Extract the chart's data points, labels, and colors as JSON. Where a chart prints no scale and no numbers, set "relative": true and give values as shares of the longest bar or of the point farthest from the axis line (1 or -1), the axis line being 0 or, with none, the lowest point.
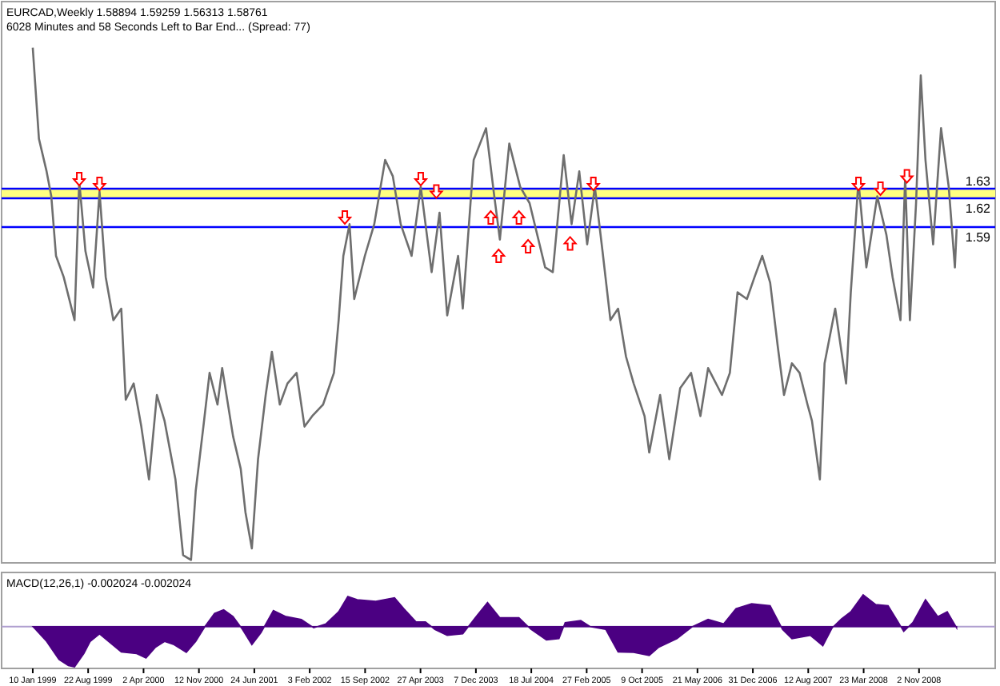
{
  "chart_data": [
    {
      "type": "line",
      "title": "EURCAD,Weekly 1.58894 1.59259 1.56313 1.58761",
      "subtitle": "6028 Minutes and 58 Seconds Left to Bar End... (Spread: 77)",
      "xlim": [
        "1998-09-06",
        "2009-09-06"
      ],
      "ylim": [
        1.24,
        1.825
      ],
      "tick_labels": false,
      "series": [
        {
          "color": "#6e6e6e",
          "marker": "none",
          "x": [
            "1999-01-10",
            "1999-02-04",
            "1999-03-07",
            "1999-03-26",
            "1999-04-14",
            "1999-05-15",
            "1999-06-28",
            "1999-07-17",
            "1999-08-11",
            "1999-09-11",
            "1999-10-07",
            "1999-11-01",
            "1999-12-02",
            "2000-01-03",
            "2000-01-21",
            "2000-02-22",
            "2000-03-24",
            "2000-04-24",
            "2000-05-26",
            "2000-06-26",
            "2000-08-09",
            "2000-09-09",
            "2000-10-11",
            "2000-10-30",
            "2000-11-30",
            "2000-12-25",
            "2001-01-26",
            "2001-02-14",
            "2001-03-30",
            "2001-04-30",
            "2001-05-19",
            "2001-06-14",
            "2001-07-09",
            "2001-08-09",
            "2001-09-03",
            "2001-10-05",
            "2001-11-05",
            "2001-12-12",
            "2002-01-13",
            "2002-02-13",
            "2002-03-29",
            "2002-05-12",
            "2002-05-31",
            "2002-06-19",
            "2002-07-14",
            "2002-08-02",
            "2002-09-14",
            "2002-10-22",
            "2002-12-05",
            "2003-01-05",
            "2003-02-06",
            "2003-03-22",
            "2003-04-28",
            "2003-06-11",
            "2003-07-13",
            "2003-08-13",
            "2003-09-26",
            "2003-10-15",
            "2003-11-28",
            "2004-01-17",
            "2004-02-17",
            "2004-03-13",
            "2004-04-20",
            "2004-06-03",
            "2004-07-11",
            "2004-09-12",
            "2004-10-13",
            "2004-11-26",
            "2004-12-28",
            "2005-01-28",
            "2005-03-01",
            "2005-04-01",
            "2005-05-02",
            "2005-06-03",
            "2005-07-04",
            "2005-08-05",
            "2005-09-05",
            "2005-10-19",
            "2005-11-07",
            "2005-12-21",
            "2006-01-27",
            "2006-03-12",
            "2006-04-25",
            "2006-06-02",
            "2006-07-03",
            "2006-08-28",
            "2006-09-29",
            "2006-10-30",
            "2006-12-07",
            "2007-01-07",
            "2007-02-07",
            "2007-03-11",
            "2007-04-11",
            "2007-05-06",
            "2007-06-07",
            "2007-07-08",
            "2007-08-09",
            "2007-08-27",
            "2007-09-28",
            "2007-10-17",
            "2007-11-29",
            "2008-01-12",
            "2008-01-31",
            "2008-03-02",
            "2008-04-03",
            "2008-05-17",
            "2008-06-23",
            "2008-07-18",
            "2008-08-19",
            "2008-09-07",
            "2008-09-26",
            "2008-10-21",
            "2008-11-09",
            "2008-11-28",
            "2008-12-29",
            "2009-01-30",
            "2009-03-02",
            "2009-03-27",
            "2009-04-03"
          ],
          "values": [
            1.777,
            1.682,
            1.648,
            1.622,
            1.56,
            1.538,
            1.493,
            1.638,
            1.565,
            1.527,
            1.627,
            1.538,
            1.493,
            1.505,
            1.41,
            1.427,
            1.382,
            1.327,
            1.415,
            1.388,
            1.327,
            1.248,
            1.243,
            1.315,
            1.382,
            1.438,
            1.405,
            1.443,
            1.372,
            1.338,
            1.293,
            1.255,
            1.348,
            1.415,
            1.46,
            1.405,
            1.427,
            1.438,
            1.382,
            1.393,
            1.405,
            1.438,
            1.493,
            1.56,
            1.593,
            1.515,
            1.56,
            1.593,
            1.66,
            1.643,
            1.593,
            1.56,
            1.632,
            1.543,
            1.605,
            1.498,
            1.56,
            1.505,
            1.66,
            1.693,
            1.627,
            1.577,
            1.677,
            1.632,
            1.615,
            1.548,
            1.543,
            1.665,
            1.593,
            1.648,
            1.572,
            1.632,
            1.565,
            1.493,
            1.505,
            1.455,
            1.427,
            1.393,
            1.355,
            1.415,
            1.348,
            1.422,
            1.438,
            1.393,
            1.443,
            1.415,
            1.438,
            1.522,
            1.515,
            1.538,
            1.56,
            1.532,
            1.465,
            1.415,
            1.448,
            1.438,
            1.405,
            1.388,
            1.327,
            1.448,
            1.505,
            1.427,
            1.522,
            1.638,
            1.548,
            1.622,
            1.582,
            1.538,
            1.493,
            1.643,
            1.493,
            1.615,
            1.748,
            1.66,
            1.572,
            1.693,
            1.632,
            1.548,
            1.588
          ]
        },
        {
          "type": "scatter",
          "color": "#ff0000",
          "marker": "triangle",
          "x": [
            "1999-07-17",
            "1999-10-07",
            "2002-06-25",
            "2003-04-28",
            "2003-06-30",
            "2005-03-26",
            "2008-03-02",
            "2008-05-30",
            "2008-09-14"
          ],
          "values": [
            1.64,
            1.635,
            1.6,
            1.64,
            1.627,
            1.635,
            1.635,
            1.63,
            1.643
          ]
        },
        {
          "type": "scatter",
          "color": "#ff0000",
          "marker": "triangle",
          "x": [
            "2004-02-05",
            "2004-03-08",
            "2004-05-29",
            "2004-07-05",
            "2004-12-22"
          ],
          "values": [
            1.6,
            1.56,
            1.6,
            1.57,
            1.573
          ]
        }
      ],
      "bands": [
        {
          "axis": "y",
          "from": 1.62,
          "to": 1.63,
          "color": "#ffff80"
        }
      ],
      "ref_lines": [
        {
          "axis": "y",
          "value": 1.63,
          "label": "1.63",
          "color": "#0000ff"
        },
        {
          "axis": "y",
          "value": 1.62,
          "label": "1.62",
          "color": "#0000ff"
        },
        {
          "axis": "y",
          "value": 1.59,
          "label": "1.59",
          "color": "#0000ff"
        }
      ]
    },
    {
      "type": "area",
      "title": "MACD(12,26,1) -0.002024 -0.002024",
      "relative": true,
      "tick_labels": "x",
      "ref_lines": [
        {
          "axis": "y",
          "value": 0,
          "color": "#b0a0d0"
        }
      ],
      "xlim": [
        "1998-09-06",
        "2009-09-06"
      ],
      "xticks": [
        {
          "value": "1999-01-10",
          "label": "10 Jan 1999"
        },
        {
          "value": "1999-08-22",
          "label": "22 Aug 1999"
        },
        {
          "value": "2000-04-02",
          "label": "2 Apr 2000"
        },
        {
          "value": "2000-11-12",
          "label": "12 Nov 2000"
        },
        {
          "value": "2001-06-24",
          "label": "24 Jun 2001"
        },
        {
          "value": "2002-02-03",
          "label": "3 Feb 2002"
        },
        {
          "value": "2002-09-15",
          "label": "15 Sep 2002"
        },
        {
          "value": "2003-04-27",
          "label": "27 Apr 2003"
        },
        {
          "value": "2003-12-07",
          "label": "7 Dec 2003"
        },
        {
          "value": "2004-07-18",
          "label": "18 Jul 2004"
        },
        {
          "value": "2005-02-27",
          "label": "27 Feb 2005"
        },
        {
          "value": "2005-10-09",
          "label": "9 Oct 2005"
        },
        {
          "value": "2006-05-21",
          "label": "21 May 2006"
        },
        {
          "value": "2006-12-31",
          "label": "31 Dec 2006"
        },
        {
          "value": "2007-08-12",
          "label": "12 Aug 2007"
        },
        {
          "value": "2008-03-23",
          "label": "23 Mar 2008"
        },
        {
          "value": "2008-11-02",
          "label": "2 Nov 2008"
        }
      ],
      "series": [
        {
          "color": "#4b0082",
          "x": [
            "1999-01-11",
            "1999-03-07",
            "1999-04-26",
            "1999-06-03",
            "1999-06-28",
            "1999-08-05",
            "1999-08-30",
            "1999-10-07",
            "1999-11-13",
            "2000-01-03",
            "2000-03-05",
            "2000-04-12",
            "2000-05-19",
            "2000-06-26",
            "2000-08-03",
            "2000-09-22",
            "2000-10-30",
            "2000-12-06",
            "2001-01-14",
            "2001-02-20",
            "2001-03-30",
            "2001-05-07",
            "2001-06-14",
            "2001-07-21",
            "2001-09-09",
            "2001-10-30",
            "2001-12-31",
            "2002-02-19",
            "2002-04-10",
            "2002-05-31",
            "2002-07-07",
            "2002-08-14",
            "2002-10-28",
            "2003-01-12",
            "2003-02-18",
            "2003-04-09",
            "2003-05-17",
            "2003-06-24",
            "2003-08-13",
            "2003-10-15",
            "2003-12-04",
            "2004-01-23",
            "2004-03-13",
            "2004-05-29",
            "2004-07-17",
            "2004-09-17",
            "2004-11-07",
            "2004-12-02",
            "2005-02-03",
            "2005-03-13",
            "2005-05-15",
            "2005-07-04",
            "2005-09-05",
            "2005-11-07",
            "2005-12-14",
            "2006-02-27",
            "2006-05-01",
            "2006-07-03",
            "2006-09-04",
            "2006-10-24",
            "2006-12-26",
            "2007-03-11",
            "2007-04-30",
            "2007-06-07",
            "2007-08-21",
            "2007-10-10",
            "2007-11-17",
            "2007-12-24",
            "2008-01-31",
            "2008-03-21",
            "2008-05-11",
            "2008-06-30",
            "2008-08-06",
            "2008-09-01",
            "2008-10-08",
            "2008-11-28",
            "2009-01-17",
            "2009-02-24",
            "2009-04-03"
          ],
          "values": [
            0,
            -0.37,
            -0.82,
            -0.97,
            -1,
            -0.67,
            -0.37,
            -0.18,
            -0.37,
            -0.63,
            -0.67,
            -0.78,
            -0.52,
            -0.37,
            -0.45,
            -0.64,
            -0.37,
            0,
            0.33,
            0.42,
            0.25,
            -0.07,
            -0.45,
            -0.15,
            0.4,
            0.25,
            0.18,
            -0.03,
            0.07,
            0.37,
            0.75,
            0.67,
            0.63,
            0.72,
            0.45,
            0.12,
            0.12,
            -0.07,
            -0.22,
            -0.18,
            0.22,
            0.6,
            0.22,
            0.22,
            -0.07,
            -0.33,
            -0.3,
            0.1,
            0.15,
            0,
            -0.07,
            -0.63,
            -0.64,
            -0.72,
            -0.52,
            -0.3,
            0,
            0.18,
            0.07,
            0.45,
            0.57,
            0.52,
            -0.07,
            -0.3,
            -0.22,
            -0.48,
            -0.03,
            0.19,
            0.37,
            0.79,
            0.55,
            0.52,
            0.15,
            -0.12,
            0.1,
            0.67,
            0.25,
            0.37,
            -0.03
          ]
        }
      ]
    }
  ]
}
